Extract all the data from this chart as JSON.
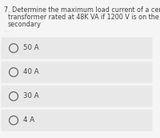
{
  "question_number": "7.",
  "question_text_line1": "Determine the maximum load current of a certain",
  "question_text_line2": "transformer rated at 48K VA if 1200 V is on the",
  "question_text_line3": "secondary",
  "choices": [
    "50 A",
    "40 A",
    "30 A",
    "4 A"
  ],
  "background_color": "#f5f5f5",
  "choice_box_color": "#e8e8e8",
  "text_color": "#444444",
  "circle_edge_color": "#666666",
  "question_fontsize": 5.8,
  "choice_fontsize": 6.2,
  "fig_width": 2.0,
  "fig_height": 1.72,
  "dpi": 100
}
